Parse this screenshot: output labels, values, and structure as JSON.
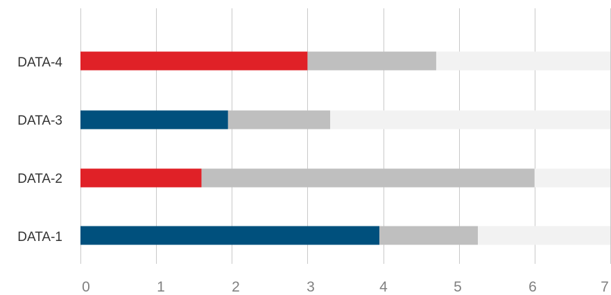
{
  "chart_data": {
    "type": "bar",
    "orientation": "horizontal",
    "stacked": true,
    "categories": [
      "DATA-1",
      "DATA-2",
      "DATA-3",
      "DATA-4"
    ],
    "series": [
      {
        "values": [
          3.95,
          1.6,
          1.95,
          3.0
        ],
        "colors": [
          "#00507d",
          "#e02127",
          "#00507d",
          "#e02127"
        ]
      },
      {
        "values": [
          1.3,
          4.4,
          1.35,
          1.7
        ],
        "color": "#bfbfbf"
      },
      {
        "values": [
          1.75,
          1.0,
          3.7,
          2.3
        ],
        "color": "#f2f2f2"
      }
    ],
    "xlim": [
      0,
      7
    ],
    "xticks": [
      "0",
      "1",
      "2",
      "3",
      "4",
      "5",
      "6",
      "7"
    ],
    "grid": "vertical",
    "title": "",
    "xlabel": "",
    "ylabel": "",
    "legend": "none"
  }
}
